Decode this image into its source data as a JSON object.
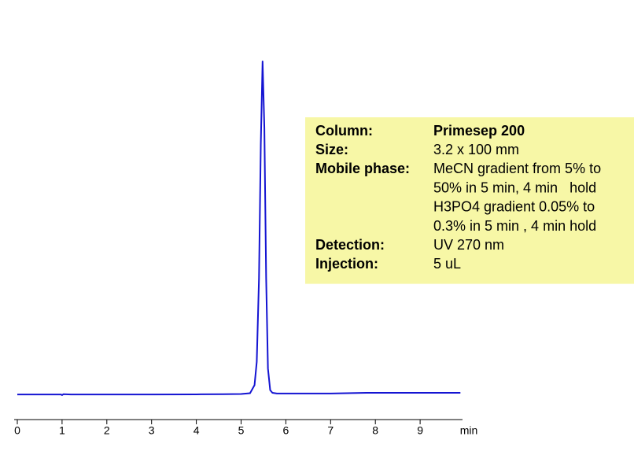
{
  "chart_data": {
    "type": "line",
    "x_label": "min",
    "xlim": [
      0,
      10
    ],
    "xticks": [
      0,
      1,
      2,
      3,
      4,
      5,
      6,
      7,
      8,
      9
    ],
    "ylim": [
      0,
      100
    ],
    "x": [
      0,
      0.5,
      0.98,
      1.0,
      1.03,
      1.2,
      2,
      3,
      4,
      4.6,
      5.0,
      5.2,
      5.3,
      5.35,
      5.4,
      5.44,
      5.48,
      5.52,
      5.56,
      5.6,
      5.65,
      5.7,
      5.8,
      6,
      7,
      7.8,
      8,
      9,
      9.9
    ],
    "series": [
      {
        "color": "#1414d2",
        "values": [
          0.2,
          0.2,
          0.2,
          0.0,
          0.3,
          0.2,
          0.2,
          0.2,
          0.25,
          0.3,
          0.35,
          0.6,
          3,
          10,
          35,
          75,
          100,
          80,
          35,
          8,
          1.5,
          0.7,
          0.5,
          0.5,
          0.5,
          0.7,
          0.7,
          0.7,
          0.7
        ]
      }
    ],
    "annotation_color": "#f7f7a6",
    "annotations": [
      {
        "label": "Column:",
        "text": [
          "Primesep 200"
        ]
      },
      {
        "label": "Size:",
        "text": [
          "3.2 x 100 mm"
        ]
      },
      {
        "label": "Mobile phase:",
        "text": [
          "MeCN gradient from 5% to",
          "50% in 5 min, 4 min   hold",
          "H3PO4 gradient 0.05% to",
          "0.3% in 5 min , 4 min hold"
        ]
      },
      {
        "label": "Detection:",
        "text": [
          "UV 270 nm"
        ]
      },
      {
        "label": "Injection:",
        "text": [
          "5 uL"
        ]
      }
    ]
  }
}
